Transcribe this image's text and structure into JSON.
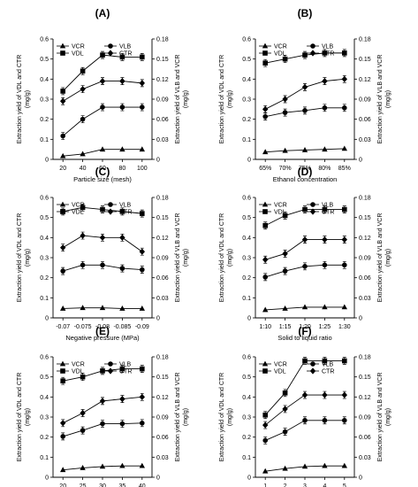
{
  "figure": {
    "panels_ordered": [
      "A",
      "B",
      "C",
      "D",
      "E",
      "F"
    ]
  },
  "chart_data": [
    {
      "panel": "(A)",
      "type": "line",
      "xlabel": "Particle size (mesh)",
      "ylabel_left": "Extraction yield of VDL and CTR (mg/g)",
      "ylabel_right": "Extraction yield of VLB and VCR (mg/g)",
      "categories": [
        "20",
        "40",
        "60",
        "80",
        "100"
      ],
      "ylim_left": [
        0,
        0.6
      ],
      "yticks_left": [
        "0",
        "0.1",
        "0.2",
        "0.3",
        "0.4",
        "0.5",
        "0.6"
      ],
      "ylim_right": [
        0,
        0.18
      ],
      "yticks_right": [
        "0",
        "0.03",
        "0.06",
        "0.09",
        "0.12",
        "0.15",
        "0.18"
      ],
      "legend": [
        "VCR",
        "VLB",
        "VDL",
        "CTR"
      ],
      "series": [
        {
          "name": "VCR",
          "axis": "right",
          "marker": "triangle",
          "values": [
            0.005,
            0.008,
            0.015,
            0.015,
            0.015
          ]
        },
        {
          "name": "VLB",
          "axis": "right",
          "marker": "circle",
          "values": [
            0.035,
            0.06,
            0.078,
            0.078,
            0.078
          ]
        },
        {
          "name": "VDL",
          "axis": "left",
          "marker": "square",
          "values": [
            0.34,
            0.44,
            0.52,
            0.51,
            0.51
          ]
        },
        {
          "name": "CTR",
          "axis": "left",
          "marker": "diamond",
          "values": [
            0.29,
            0.35,
            0.39,
            0.39,
            0.38
          ]
        }
      ]
    },
    {
      "panel": "(B)",
      "type": "line",
      "xlabel": "Ethanol concentration",
      "ylabel_left": "Extraction yield of VDL and CTR (mg/g)",
      "ylabel_right": "Extraction yield of VLB and VCR (mg/g)",
      "categories": [
        "65%",
        "70%",
        "75%",
        "80%",
        "85%"
      ],
      "ylim_left": [
        0,
        0.6
      ],
      "yticks_left": [
        "0",
        "0.1",
        "0.2",
        "0.3",
        "0.4",
        "0.5",
        "0.6"
      ],
      "ylim_right": [
        0,
        0.18
      ],
      "yticks_right": [
        "0",
        "0.03",
        "0.06",
        "0.09",
        "0.12",
        "0.15",
        "0.18"
      ],
      "legend": [
        "VCR",
        "VLB",
        "VDL",
        "CTR"
      ],
      "series": [
        {
          "name": "VCR",
          "axis": "right",
          "marker": "triangle",
          "values": [
            0.011,
            0.013,
            0.014,
            0.015,
            0.016
          ]
        },
        {
          "name": "VLB",
          "axis": "right",
          "marker": "circle",
          "values": [
            0.064,
            0.07,
            0.073,
            0.077,
            0.077
          ]
        },
        {
          "name": "VDL",
          "axis": "left",
          "marker": "square",
          "values": [
            0.48,
            0.5,
            0.52,
            0.53,
            0.53
          ]
        },
        {
          "name": "CTR",
          "axis": "left",
          "marker": "diamond",
          "values": [
            0.25,
            0.3,
            0.36,
            0.39,
            0.4
          ]
        }
      ]
    },
    {
      "panel": "(C)",
      "type": "line",
      "xlabel": "Negative pressure (MPa)",
      "ylabel_left": "Extraction yield of VDL and CTR (mg/g)",
      "ylabel_right": "Extraction yield of VLB and VCR (mg/g)",
      "categories": [
        "-0.07",
        "-0.075",
        "-0.08",
        "-0.085",
        "-0.09"
      ],
      "ylim_left": [
        0,
        0.6
      ],
      "yticks_left": [
        "0",
        "0.1",
        "0.2",
        "0.3",
        "0.4",
        "0.5",
        "0.6"
      ],
      "ylim_right": [
        0,
        0.18
      ],
      "yticks_right": [
        "0",
        "0.03",
        "0.06",
        "0.09",
        "0.12",
        "0.15",
        "0.18"
      ],
      "legend": [
        "VCR",
        "VLB",
        "VDL",
        "CTR"
      ],
      "series": [
        {
          "name": "VCR",
          "axis": "right",
          "marker": "triangle",
          "values": [
            0.014,
            0.015,
            0.015,
            0.014,
            0.014
          ]
        },
        {
          "name": "VLB",
          "axis": "right",
          "marker": "circle",
          "values": [
            0.07,
            0.079,
            0.079,
            0.074,
            0.072
          ]
        },
        {
          "name": "VDL",
          "axis": "left",
          "marker": "square",
          "values": [
            0.53,
            0.55,
            0.54,
            0.53,
            0.52
          ]
        },
        {
          "name": "CTR",
          "axis": "left",
          "marker": "diamond",
          "values": [
            0.35,
            0.41,
            0.4,
            0.4,
            0.33
          ]
        }
      ]
    },
    {
      "panel": "(D)",
      "type": "line",
      "xlabel": "Solid to liquid ratio",
      "ylabel_left": "Extraction yield of VDL and CTR (mg/g)",
      "ylabel_right": "Extraction yield of VLB and VCR (mg/g)",
      "categories": [
        "1:10",
        "1:15",
        "1:20",
        "1:25",
        "1:30"
      ],
      "ylim_left": [
        0,
        0.6
      ],
      "yticks_left": [
        "0",
        "0.1",
        "0.2",
        "0.3",
        "0.4",
        "0.5",
        "0.6"
      ],
      "ylim_right": [
        0,
        0.18
      ],
      "yticks_right": [
        "0",
        "0.03",
        "0.06",
        "0.09",
        "0.12",
        "0.15",
        "0.18"
      ],
      "legend": [
        "VCR",
        "VLB",
        "VDL",
        "CTR"
      ],
      "series": [
        {
          "name": "VCR",
          "axis": "right",
          "marker": "triangle",
          "values": [
            0.012,
            0.014,
            0.016,
            0.016,
            0.016
          ]
        },
        {
          "name": "VLB",
          "axis": "right",
          "marker": "circle",
          "values": [
            0.061,
            0.07,
            0.077,
            0.079,
            0.079
          ]
        },
        {
          "name": "VDL",
          "axis": "left",
          "marker": "square",
          "values": [
            0.46,
            0.51,
            0.54,
            0.54,
            0.54
          ]
        },
        {
          "name": "CTR",
          "axis": "left",
          "marker": "diamond",
          "values": [
            0.29,
            0.32,
            0.39,
            0.39,
            0.39
          ]
        }
      ]
    },
    {
      "panel": "(E)",
      "type": "line",
      "xlabel": "Time (min)",
      "ylabel_left": "Extraction yield of VDL and CTR (mg/g)",
      "ylabel_right": "Extraction yield of VLB and VCR (mg/g)",
      "categories": [
        "20",
        "25",
        "30",
        "35",
        "40"
      ],
      "ylim_left": [
        0,
        0.6
      ],
      "yticks_left": [
        "0",
        "0.1",
        "0.2",
        "0.3",
        "0.4",
        "0.5",
        "0.6"
      ],
      "ylim_right": [
        0,
        0.18
      ],
      "yticks_right": [
        "0",
        "0.03",
        "0.06",
        "0.09",
        "0.12",
        "0.15",
        "0.18"
      ],
      "legend": [
        "VCR",
        "VLB",
        "VDL",
        "CTR"
      ],
      "series": [
        {
          "name": "VCR",
          "axis": "right",
          "marker": "triangle",
          "values": [
            0.011,
            0.014,
            0.016,
            0.017,
            0.017
          ]
        },
        {
          "name": "VLB",
          "axis": "right",
          "marker": "circle",
          "values": [
            0.061,
            0.07,
            0.08,
            0.08,
            0.081
          ]
        },
        {
          "name": "VDL",
          "axis": "left",
          "marker": "square",
          "values": [
            0.48,
            0.5,
            0.53,
            0.54,
            0.54
          ]
        },
        {
          "name": "CTR",
          "axis": "left",
          "marker": "diamond",
          "values": [
            0.27,
            0.32,
            0.38,
            0.39,
            0.4
          ]
        }
      ]
    },
    {
      "panel": "(F)",
      "type": "line",
      "xlabel": "Cycles",
      "ylabel_left": "Extraction yield of VDL and CTR (mg/g)",
      "ylabel_right": "Extraction yield of VLB and VCR (mg/g)",
      "categories": [
        "1",
        "2",
        "3",
        "4",
        "5"
      ],
      "ylim_left": [
        0,
        0.6
      ],
      "yticks_left": [
        "0",
        "0.1",
        "0.2",
        "0.3",
        "0.4",
        "0.5",
        "0.6"
      ],
      "ylim_right": [
        0,
        0.18
      ],
      "yticks_right": [
        "0",
        "0.03",
        "0.06",
        "0.09",
        "0.12",
        "0.15",
        "0.18"
      ],
      "legend": [
        "VCR",
        "VLB",
        "VDL",
        "CTR"
      ],
      "series": [
        {
          "name": "VCR",
          "axis": "right",
          "marker": "triangle",
          "values": [
            0.009,
            0.013,
            0.016,
            0.017,
            0.017
          ]
        },
        {
          "name": "VLB",
          "axis": "right",
          "marker": "circle",
          "values": [
            0.055,
            0.068,
            0.085,
            0.085,
            0.085
          ]
        },
        {
          "name": "VDL",
          "axis": "left",
          "marker": "square",
          "values": [
            0.31,
            0.42,
            0.58,
            0.58,
            0.58
          ]
        },
        {
          "name": "CTR",
          "axis": "left",
          "marker": "diamond",
          "values": [
            0.26,
            0.34,
            0.41,
            0.41,
            0.41
          ]
        }
      ]
    }
  ]
}
